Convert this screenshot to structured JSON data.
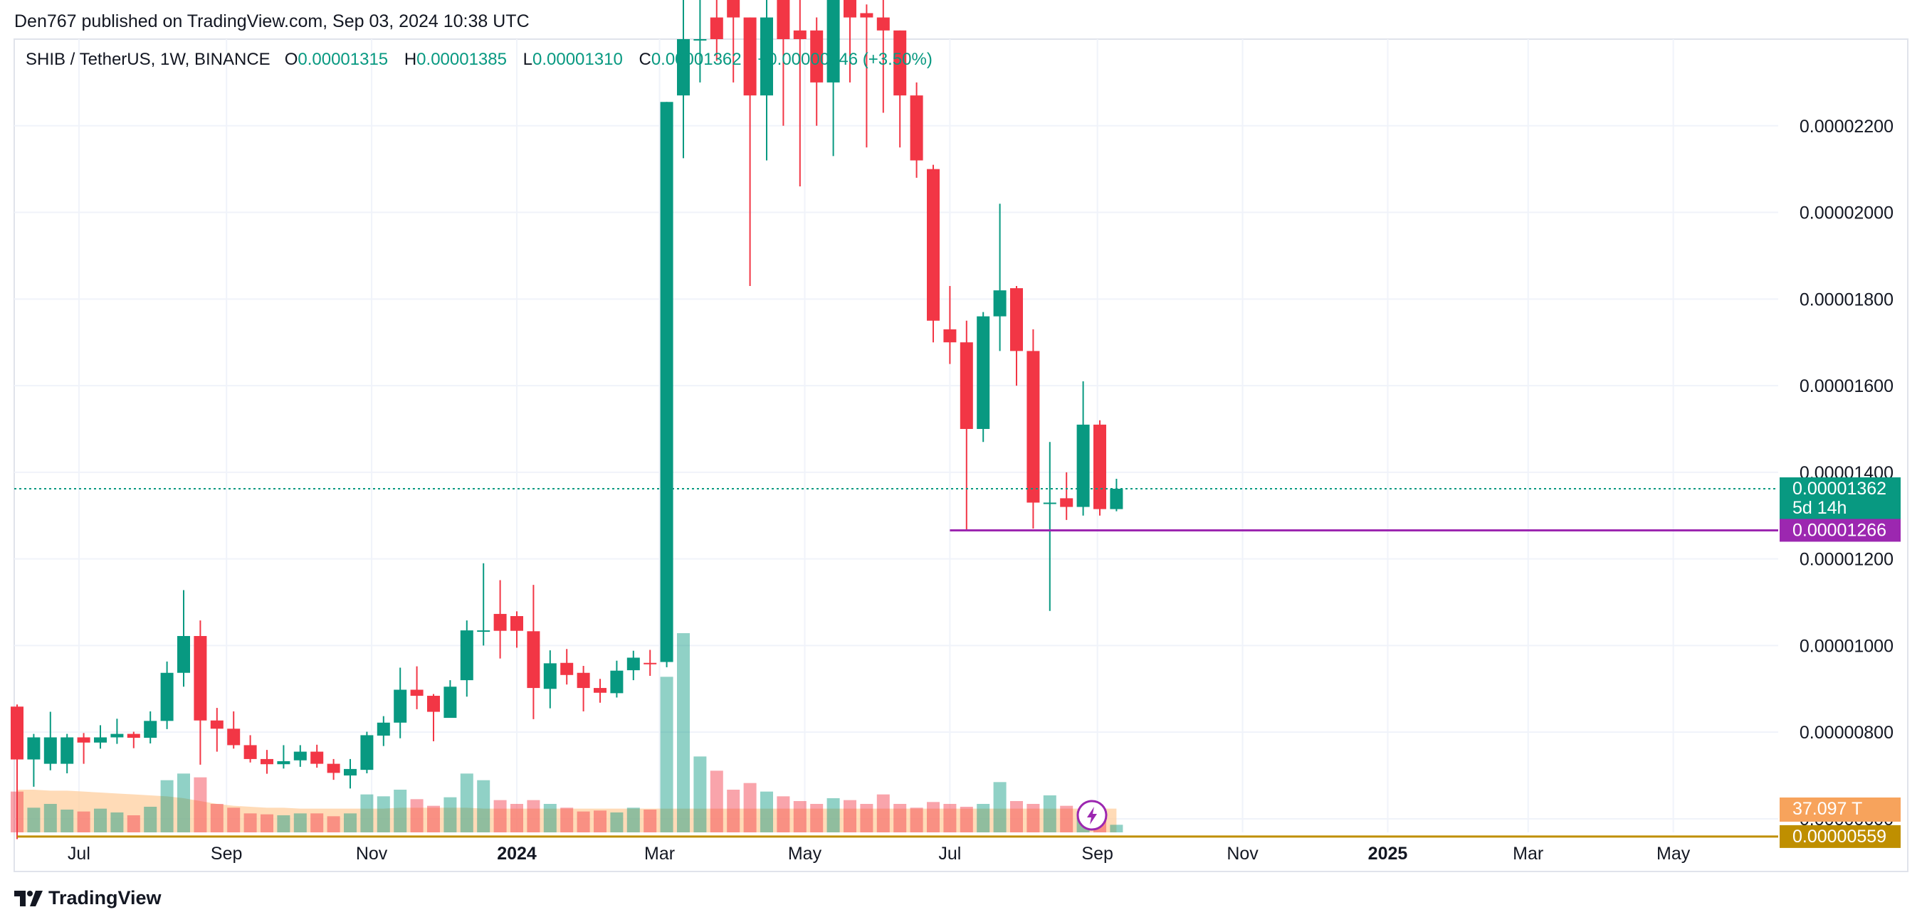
{
  "header": {
    "text": "Den767 published on TradingView.com, Sep 03, 2024 10:38 UTC"
  },
  "legend": {
    "symbol": "SHIB / TetherUS, 1W, BINANCE",
    "o_label": "O",
    "o": "0.00001315",
    "h_label": "H",
    "h": "0.00001385",
    "l_label": "L",
    "l": "0.00001310",
    "c_label": "C",
    "c": "0.00001362",
    "change": "+0.00000046 (+3.50%)"
  },
  "footer": {
    "brand": "TradingView"
  },
  "colors": {
    "up": "#089981",
    "down": "#f23645",
    "grid": "#f0f3fa",
    "text": "#131722",
    "support_line": "#9c27b0",
    "lower_line": "#bf8f00",
    "volume_ma": "#ffcc99"
  },
  "chart_data": {
    "type": "candlestick",
    "symbol": "SHIB / TetherUS",
    "interval": "1W",
    "exchange": "BINANCE",
    "ylim": [
      4.8e-06,
      2.4e-05
    ],
    "y_ticks": [
      "0.00002200",
      "0.00002000",
      "0.00001800",
      "0.00001600",
      "0.00001400",
      "0.00001200",
      "0.00001000",
      "0.00000800",
      "0.00000600"
    ],
    "y_tick_values": [
      2.2e-05,
      2e-05,
      1.8e-05,
      1.6e-05,
      1.4e-05,
      1.2e-05,
      1e-05,
      8e-06,
      6e-06
    ],
    "x_ticks": [
      "Jul",
      "Sep",
      "Nov",
      "2024",
      "Mar",
      "May",
      "Jul",
      "Sep",
      "Nov",
      "2025",
      "Mar",
      "May"
    ],
    "x_tick_dates": [
      "2023-07-01",
      "2023-09-01",
      "2023-11-01",
      "2024-01-01",
      "2024-03-01",
      "2024-05-01",
      "2024-07-01",
      "2024-09-01",
      "2024-11-01",
      "2025-01-01",
      "2025-03-01",
      "2025-05-01"
    ],
    "last_price": {
      "value": 1.362e-05,
      "label": "0.00001362",
      "countdown": "5d 14h"
    },
    "horizontal_lines": [
      {
        "value": 1.266e-05,
        "label": "0.00001266",
        "start": "2024-07-01",
        "color": "#9c27b0"
      },
      {
        "value": 5.59e-06,
        "label": "0.00000559",
        "start": "2023-06-05",
        "color": "#bf8f00"
      }
    ],
    "volume_label": "37.097 T",
    "volume_ma": [
      0.45,
      0.45,
      0.44,
      0.44,
      0.43,
      0.42,
      0.41,
      0.4,
      0.39,
      0.38,
      0.36,
      0.33,
      0.3,
      0.28,
      0.27,
      0.26,
      0.26,
      0.25,
      0.25,
      0.25,
      0.25,
      0.25,
      0.25,
      0.26,
      0.26,
      0.26,
      0.26,
      0.26,
      0.25,
      0.25,
      0.25,
      0.25,
      0.25,
      0.25,
      0.25,
      0.25,
      0.25,
      0.25,
      0.25,
      0.25,
      0.25,
      0.25,
      0.25,
      0.25,
      0.25,
      0.25,
      0.25,
      0.25,
      0.25,
      0.25,
      0.25,
      0.25,
      0.25,
      0.25,
      0.25,
      0.25,
      0.25,
      0.25,
      0.25,
      0.25,
      0.25,
      0.25,
      0.25,
      0.25,
      0.25,
      0.25,
      0.25
    ],
    "candles": [
      {
        "date": "2023-06-05",
        "o": 8.59e-06,
        "h": 8.64e-06,
        "l": 5.53e-06,
        "c": 7.37e-06,
        "v": 0.43
      },
      {
        "date": "2023-06-12",
        "o": 7.37e-06,
        "h": 7.96e-06,
        "l": 6.74e-06,
        "c": 7.88e-06,
        "v": 0.26
      },
      {
        "date": "2023-06-19",
        "o": 7.27e-06,
        "h": 8.47e-06,
        "l": 7.12e-06,
        "c": 7.88e-06,
        "v": 0.3
      },
      {
        "date": "2023-06-26",
        "o": 7.27e-06,
        "h": 7.96e-06,
        "l": 7.05e-06,
        "c": 7.88e-06,
        "v": 0.24
      },
      {
        "date": "2023-07-03",
        "o": 7.88e-06,
        "h": 7.98e-06,
        "l": 7.27e-06,
        "c": 7.76e-06,
        "v": 0.22
      },
      {
        "date": "2023-07-10",
        "o": 7.76e-06,
        "h": 8.16e-06,
        "l": 7.62e-06,
        "c": 7.88e-06,
        "v": 0.25
      },
      {
        "date": "2023-07-17",
        "o": 7.88e-06,
        "h": 8.31e-06,
        "l": 7.73e-06,
        "c": 7.96e-06,
        "v": 0.21
      },
      {
        "date": "2023-07-24",
        "o": 7.96e-06,
        "h": 8.01e-06,
        "l": 7.63e-06,
        "c": 7.87e-06,
        "v": 0.18
      },
      {
        "date": "2023-07-31",
        "o": 7.87e-06,
        "h": 8.48e-06,
        "l": 7.74e-06,
        "c": 8.26e-06,
        "v": 0.27
      },
      {
        "date": "2023-08-07",
        "o": 8.26e-06,
        "h": 9.63e-06,
        "l": 8.07e-06,
        "c": 9.37e-06,
        "v": 0.55
      },
      {
        "date": "2023-08-14",
        "o": 9.37e-06,
        "h": 1.128e-05,
        "l": 9.05e-06,
        "c": 1.022e-05,
        "v": 0.62
      },
      {
        "date": "2023-08-21",
        "o": 1.022e-05,
        "h": 1.058e-05,
        "l": 7.25e-06,
        "c": 8.27e-06,
        "v": 0.58
      },
      {
        "date": "2023-08-28",
        "o": 8.27e-06,
        "h": 8.56e-06,
        "l": 7.55e-06,
        "c": 8.08e-06,
        "v": 0.3
      },
      {
        "date": "2023-09-04",
        "o": 8.08e-06,
        "h": 8.48e-06,
        "l": 7.62e-06,
        "c": 7.7e-06,
        "v": 0.26
      },
      {
        "date": "2023-09-11",
        "o": 7.7e-06,
        "h": 7.93e-06,
        "l": 7.3e-06,
        "c": 7.38e-06,
        "v": 0.2
      },
      {
        "date": "2023-09-18",
        "o": 7.38e-06,
        "h": 7.59e-06,
        "l": 7.04e-06,
        "c": 7.26e-06,
        "v": 0.19
      },
      {
        "date": "2023-09-25",
        "o": 7.26e-06,
        "h": 7.7e-06,
        "l": 7.16e-06,
        "c": 7.33e-06,
        "v": 0.18
      },
      {
        "date": "2023-10-02",
        "o": 7.35e-06,
        "h": 7.7e-06,
        "l": 7.2e-06,
        "c": 7.55e-06,
        "v": 0.2
      },
      {
        "date": "2023-10-09",
        "o": 7.55e-06,
        "h": 7.71e-06,
        "l": 7.18e-06,
        "c": 7.27e-06,
        "v": 0.2
      },
      {
        "date": "2023-10-16",
        "o": 7.27e-06,
        "h": 7.38e-06,
        "l": 6.9e-06,
        "c": 7.06e-06,
        "v": 0.17
      },
      {
        "date": "2023-10-23",
        "o": 7e-06,
        "h": 7.38e-06,
        "l": 6.7e-06,
        "c": 7.15e-06,
        "v": 0.2
      },
      {
        "date": "2023-10-30",
        "o": 7.13e-06,
        "h": 8.01e-06,
        "l": 7.05e-06,
        "c": 7.93e-06,
        "v": 0.4
      },
      {
        "date": "2023-11-06",
        "o": 7.92e-06,
        "h": 8.37e-06,
        "l": 7.68e-06,
        "c": 8.22e-06,
        "v": 0.38
      },
      {
        "date": "2023-11-13",
        "o": 8.22e-06,
        "h": 9.49e-06,
        "l": 7.86e-06,
        "c": 8.98e-06,
        "v": 0.45
      },
      {
        "date": "2023-11-20",
        "o": 8.98e-06,
        "h": 9.52e-06,
        "l": 8.53e-06,
        "c": 8.84e-06,
        "v": 0.35
      },
      {
        "date": "2023-11-27",
        "o": 8.84e-06,
        "h": 8.88e-06,
        "l": 7.79e-06,
        "c": 8.47e-06,
        "v": 0.28
      },
      {
        "date": "2023-12-04",
        "o": 8.33e-06,
        "h": 9.2e-06,
        "l": 8.38e-06,
        "c": 9.05e-06,
        "v": 0.37
      },
      {
        "date": "2023-12-11",
        "o": 9.2e-06,
        "h": 1.058e-05,
        "l": 8.82e-06,
        "c": 1.035e-05,
        "v": 0.62
      },
      {
        "date": "2023-12-18",
        "o": 1.035e-05,
        "h": 1.19e-05,
        "l": 1e-05,
        "c": 1.035e-05,
        "v": 0.55
      },
      {
        "date": "2023-12-25",
        "o": 1.073e-05,
        "h": 1.151e-05,
        "l": 9.7e-06,
        "c": 1.034e-05,
        "v": 0.34
      },
      {
        "date": "2024-01-01",
        "o": 1.068e-05,
        "h": 1.079e-05,
        "l": 9.95e-06,
        "c": 1.034e-05,
        "v": 0.3
      },
      {
        "date": "2024-01-08",
        "o": 1.033e-05,
        "h": 1.14e-05,
        "l": 8.3e-06,
        "c": 9.02e-06,
        "v": 0.34
      },
      {
        "date": "2024-01-15",
        "o": 9e-06,
        "h": 9.89e-06,
        "l": 8.55e-06,
        "c": 9.59e-06,
        "v": 0.3
      },
      {
        "date": "2024-01-22",
        "o": 9.6e-06,
        "h": 9.92e-06,
        "l": 9.1e-06,
        "c": 9.32e-06,
        "v": 0.26
      },
      {
        "date": "2024-01-29",
        "o": 9.37e-06,
        "h": 9.53e-06,
        "l": 8.48e-06,
        "c": 9.02e-06,
        "v": 0.22
      },
      {
        "date": "2024-02-05",
        "o": 9.02e-06,
        "h": 9.23e-06,
        "l": 8.68e-06,
        "c": 8.91e-06,
        "v": 0.23
      },
      {
        "date": "2024-02-12",
        "o": 8.9e-06,
        "h": 9.65e-06,
        "l": 8.8e-06,
        "c": 9.42e-06,
        "v": 0.21
      },
      {
        "date": "2024-02-19",
        "o": 9.43e-06,
        "h": 9.88e-06,
        "l": 9.2e-06,
        "c": 9.72e-06,
        "v": 0.26
      },
      {
        "date": "2024-02-26",
        "o": 9.6e-06,
        "h": 9.9e-06,
        "l": 9.3e-06,
        "c": 9.57e-06,
        "v": 0.24
      },
      {
        "date": "2024-03-04",
        "o": 9.62e-06,
        "h": 2.255e-05,
        "l": 9.5e-06,
        "c": 2.255e-05,
        "v": 1.64
      },
      {
        "date": "2024-03-11",
        "o": 2.27e-05,
        "h": 2.5e-05,
        "l": 2.125e-05,
        "c": 2.4e-05,
        "v": 2.1
      },
      {
        "date": "2024-03-18",
        "o": 2.4e-05,
        "h": 2.5e-05,
        "l": 2.3e-05,
        "c": 2.4e-05,
        "v": 0.8
      },
      {
        "date": "2024-03-25",
        "o": 2.45e-05,
        "h": 2.5e-05,
        "l": 2.35e-05,
        "c": 2.4e-05,
        "v": 0.65
      },
      {
        "date": "2024-04-01",
        "o": 2.5e-05,
        "h": 2.52e-05,
        "l": 2.3e-05,
        "c": 2.45e-05,
        "v": 0.45
      },
      {
        "date": "2024-04-08",
        "o": 2.45e-05,
        "h": 2.45e-05,
        "l": 1.83e-05,
        "c": 2.27e-05,
        "v": 0.52
      },
      {
        "date": "2024-04-15",
        "o": 2.27e-05,
        "h": 2.55e-05,
        "l": 2.12e-05,
        "c": 2.45e-05,
        "v": 0.43
      },
      {
        "date": "2024-04-22",
        "o": 2.5e-05,
        "h": 2.51e-05,
        "l": 2.2e-05,
        "c": 2.4e-05,
        "v": 0.38
      },
      {
        "date": "2024-04-29",
        "o": 2.42e-05,
        "h": 2.5e-05,
        "l": 2.06e-05,
        "c": 2.4e-05,
        "v": 0.33
      },
      {
        "date": "2024-05-06",
        "o": 2.42e-05,
        "h": 2.45e-05,
        "l": 2.2e-05,
        "c": 2.3e-05,
        "v": 0.3
      },
      {
        "date": "2024-05-13",
        "o": 2.3e-05,
        "h": 2.5e-05,
        "l": 2.13e-05,
        "c": 2.5e-05,
        "v": 0.36
      },
      {
        "date": "2024-05-20",
        "o": 2.5e-05,
        "h": 2.55e-05,
        "l": 2.3e-05,
        "c": 2.45e-05,
        "v": 0.34
      },
      {
        "date": "2024-05-27",
        "o": 2.46e-05,
        "h": 2.48e-05,
        "l": 2.15e-05,
        "c": 2.45e-05,
        "v": 0.3
      },
      {
        "date": "2024-06-03",
        "o": 2.45e-05,
        "h": 2.55e-05,
        "l": 2.23e-05,
        "c": 2.42e-05,
        "v": 0.4
      },
      {
        "date": "2024-06-10",
        "o": 2.42e-05,
        "h": 2.42e-05,
        "l": 2.15e-05,
        "c": 2.27e-05,
        "v": 0.3
      },
      {
        "date": "2024-06-17",
        "o": 2.27e-05,
        "h": 2.3e-05,
        "l": 2.08e-05,
        "c": 2.12e-05,
        "v": 0.26
      },
      {
        "date": "2024-06-24",
        "o": 2.1e-05,
        "h": 2.11e-05,
        "l": 1.7e-05,
        "c": 1.75e-05,
        "v": 0.32
      },
      {
        "date": "2024-07-01",
        "o": 1.73e-05,
        "h": 1.83e-05,
        "l": 1.65e-05,
        "c": 1.7e-05,
        "v": 0.3
      },
      {
        "date": "2024-07-08",
        "o": 1.7e-05,
        "h": 1.75e-05,
        "l": 1.266e-05,
        "c": 1.5e-05,
        "v": 0.27
      },
      {
        "date": "2024-07-15",
        "o": 1.5e-05,
        "h": 1.77e-05,
        "l": 1.47e-05,
        "c": 1.76e-05,
        "v": 0.3
      },
      {
        "date": "2024-07-22",
        "o": 1.76e-05,
        "h": 2.02e-05,
        "l": 1.68e-05,
        "c": 1.82e-05,
        "v": 0.53
      },
      {
        "date": "2024-07-29",
        "o": 1.825e-05,
        "h": 1.83e-05,
        "l": 1.6e-05,
        "c": 1.68e-05,
        "v": 0.33
      },
      {
        "date": "2024-08-05",
        "o": 1.68e-05,
        "h": 1.73e-05,
        "l": 1.27e-05,
        "c": 1.33e-05,
        "v": 0.3
      },
      {
        "date": "2024-08-12",
        "o": 1.33e-05,
        "h": 1.47e-05,
        "l": 1.08e-05,
        "c": 1.33e-05,
        "v": 0.39
      },
      {
        "date": "2024-08-19",
        "o": 1.34e-05,
        "h": 1.4e-05,
        "l": 1.29e-05,
        "c": 1.32e-05,
        "v": 0.28
      },
      {
        "date": "2024-08-26",
        "o": 1.32e-05,
        "h": 1.61e-05,
        "l": 1.3e-05,
        "c": 1.51e-05,
        "v": 0.22
      },
      {
        "date": "2024-09-02",
        "o": 1.51e-05,
        "h": 1.52e-05,
        "l": 1.3e-05,
        "c": 1.315e-05,
        "v": 0.16
      },
      {
        "date": "2024-09-09",
        "o": 1.315e-05,
        "h": 1.385e-05,
        "l": 1.31e-05,
        "c": 1.362e-05,
        "v": 0.08
      }
    ]
  }
}
